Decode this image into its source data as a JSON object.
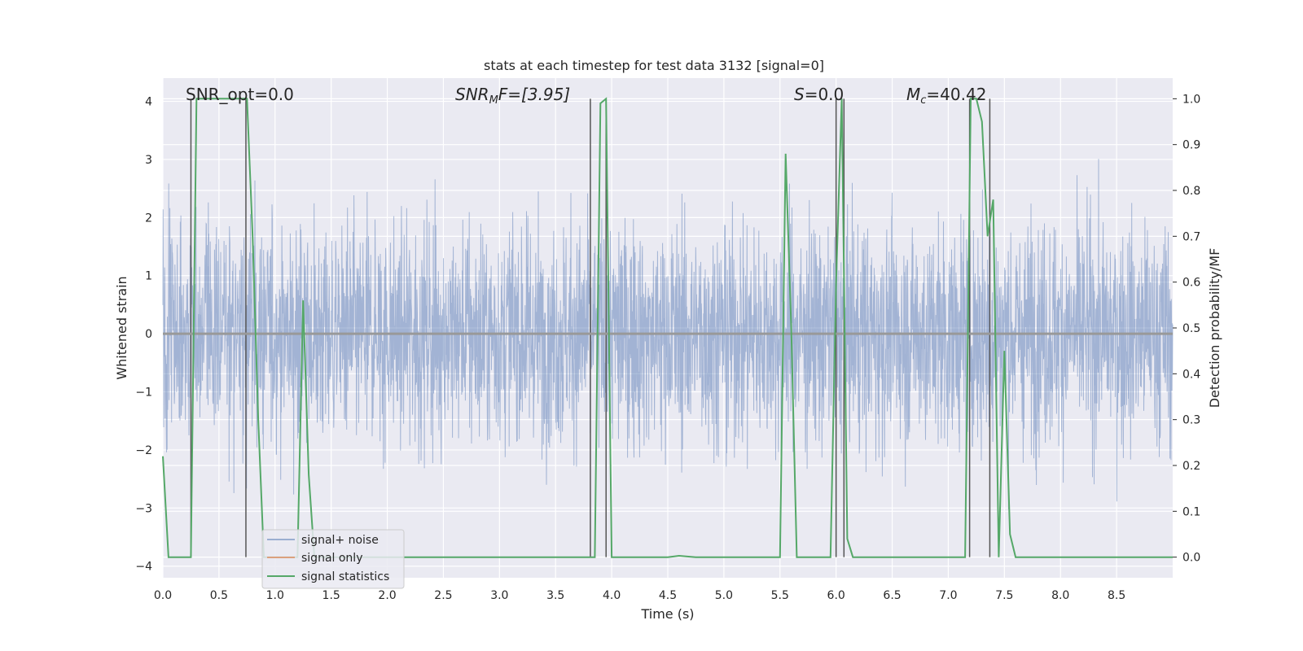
{
  "chart_data": {
    "type": "line",
    "title": "stats at each timestep for test data 3132 [signal=0]",
    "xlabel": "Time (s)",
    "ylabel": "Whitened strain",
    "y2label": "Detection probability/MF",
    "xlim": [
      0,
      9.0
    ],
    "ylim": [
      -4.2,
      4.4
    ],
    "y2lim": [
      -0.045,
      1.045
    ],
    "x_ticks": [
      "0.0",
      "0.5",
      "1.0",
      "1.5",
      "2.0",
      "2.5",
      "3.0",
      "3.5",
      "4.0",
      "4.5",
      "5.0",
      "5.5",
      "6.0",
      "6.5",
      "7.0",
      "7.5",
      "8.0",
      "8.5"
    ],
    "y_ticks": [
      "-4",
      "-3",
      "-2",
      "-1",
      "0",
      "1",
      "2",
      "3",
      "4"
    ],
    "y2_ticks": [
      "0.0",
      "0.1",
      "0.2",
      "0.3",
      "0.4",
      "0.5",
      "0.6",
      "0.7",
      "0.8",
      "0.9",
      "1.0"
    ],
    "grid": true,
    "legend_position": "lower-left",
    "series": [
      {
        "name": "signal+ noise",
        "color": "#4c72b0",
        "kind": "noise",
        "description_range": [
          -3.9,
          4.0
        ]
      },
      {
        "name": "signal only",
        "color": "#dd8452",
        "kind": "flat",
        "values_y": 0
      },
      {
        "name": "signal statistics",
        "color": "#55a868",
        "axis": "right",
        "x": [
          0.0,
          0.05,
          0.1,
          0.2,
          0.25,
          0.3,
          0.35,
          0.5,
          0.7,
          0.75,
          0.8,
          0.85,
          0.9,
          1.0,
          1.2,
          1.25,
          1.3,
          1.35,
          1.4,
          1.5,
          2.0,
          2.5,
          3.0,
          3.5,
          3.8,
          3.85,
          3.9,
          3.95,
          4.0,
          4.25,
          4.5,
          4.6,
          4.75,
          5.0,
          5.25,
          5.5,
          5.55,
          5.6,
          5.65,
          5.7,
          5.75,
          5.9,
          5.95,
          6.0,
          6.05,
          6.1,
          6.15,
          6.2,
          6.3,
          6.5,
          7.0,
          7.15,
          7.2,
          7.25,
          7.3,
          7.35,
          7.4,
          7.45,
          7.5,
          7.55,
          7.6,
          7.65,
          7.8,
          8.0,
          8.5,
          9.0
        ],
        "y": [
          0.22,
          0.0,
          0.0,
          0.0,
          0.0,
          1.0,
          1.0,
          1.0,
          1.0,
          1.0,
          0.7,
          0.3,
          0.0,
          0.0,
          0.0,
          0.56,
          0.18,
          0.0,
          0.0,
          0.0,
          0.0,
          0.0,
          0.0,
          0.0,
          0.0,
          0.0,
          0.99,
          1.0,
          0.0,
          0.0,
          0.0,
          0.003,
          0.0,
          0.0,
          0.0,
          0.0,
          0.88,
          0.5,
          0.0,
          0.0,
          0.0,
          0.0,
          0.0,
          0.6,
          1.0,
          0.04,
          0.0,
          0.0,
          0.0,
          0.0,
          0.0,
          0.0,
          1.0,
          1.0,
          0.95,
          0.7,
          0.78,
          0.0,
          0.45,
          0.05,
          0.0,
          0.0,
          0.0,
          0.0,
          0.0,
          0.0
        ]
      }
    ],
    "vertical_lines_x": [
      0.25,
      0.74,
      3.81,
      3.95,
      6.0,
      6.07,
      7.19,
      7.37
    ],
    "annotations": [
      {
        "label": "SNR_opt=0.0",
        "x": 0.2
      },
      {
        "label": "SNR",
        "sub": "M",
        "after": "F=[3.95]",
        "italic": true,
        "x": 2.6
      },
      {
        "label": "S",
        "after": "=0.0",
        "italic": true,
        "x": 5.6
      },
      {
        "label": "M",
        "sub": "c",
        "after": "=40.42",
        "italic": true,
        "x": 6.6
      }
    ]
  }
}
